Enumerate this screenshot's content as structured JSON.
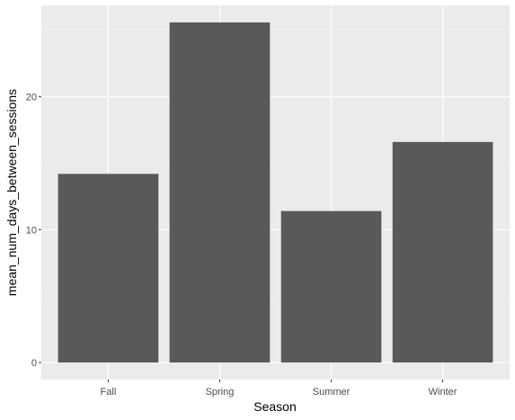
{
  "chart_data": {
    "type": "bar",
    "categories": [
      "Fall",
      "Spring",
      "Summer",
      "Winter"
    ],
    "values": [
      14.2,
      25.6,
      11.4,
      16.6
    ],
    "title": "",
    "xlabel": "Season",
    "ylabel": "mean_num_days_between_sessions",
    "ylim": [
      -1.28,
      26.88
    ],
    "y_ticks": [
      0,
      10,
      20
    ],
    "y_minor_ticks": [
      5,
      15,
      25
    ],
    "grid": true,
    "legend": "none",
    "colors": {
      "bar": "#595959",
      "panel_background": "#ebebeb",
      "grid_major": "#ffffff",
      "grid_minor": "#f5f5f5",
      "tick_text": "#4d4d4d",
      "tick_mark": "#333333"
    }
  }
}
